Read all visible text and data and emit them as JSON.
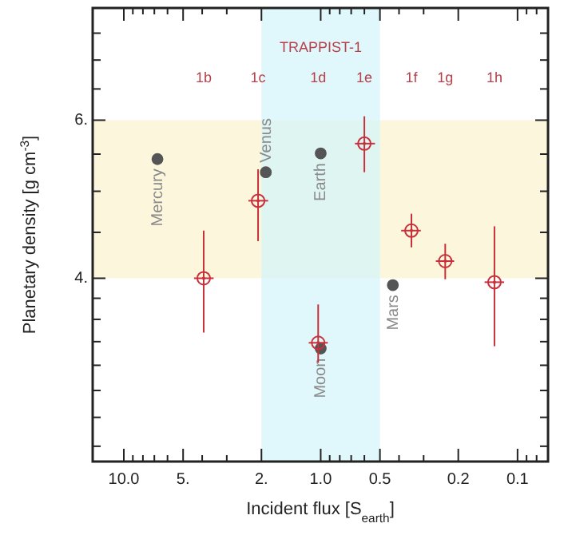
{
  "chart_data": {
    "type": "scatter",
    "xlabel": "Incident flux [S$_{earth}$]",
    "ylabel": "Planetary density [g cm$^{-3}$]",
    "log": "xy",
    "xlim": [
      14.4,
      0.07
    ],
    "ylim": [
      2.5,
      8
    ],
    "xticks": [
      {
        "value": 10,
        "label": "10.0"
      },
      {
        "value": 9,
        "label": null
      },
      {
        "value": 8,
        "label": null
      },
      {
        "value": 7,
        "label": null
      },
      {
        "value": 6,
        "label": null
      },
      {
        "value": 5,
        "label": "5."
      },
      {
        "value": 4,
        "label": null
      },
      {
        "value": 3,
        "label": null
      },
      {
        "value": 2,
        "label": "2."
      },
      {
        "value": 1,
        "label": "1.0"
      },
      {
        "value": 0.9,
        "label": null
      },
      {
        "value": 0.8,
        "label": null
      },
      {
        "value": 0.7,
        "label": null
      },
      {
        "value": 0.6,
        "label": null
      },
      {
        "value": 0.5,
        "label": "0.5"
      },
      {
        "value": 0.4,
        "label": null
      },
      {
        "value": 0.3,
        "label": null
      },
      {
        "value": 0.2,
        "label": "0.2"
      },
      {
        "value": 0.1,
        "label": "0.1"
      },
      {
        "value": 0.09,
        "label": null
      },
      {
        "value": 0.08,
        "label": null
      }
    ],
    "yticks": [
      {
        "value": 7.5,
        "label": null
      },
      {
        "value": 7,
        "label": null
      },
      {
        "value": 6.5,
        "label": null
      },
      {
        "value": 6,
        "label": "6."
      },
      {
        "value": 5.5,
        "label": null
      },
      {
        "value": 5,
        "label": null
      },
      {
        "value": 4.5,
        "label": null
      },
      {
        "value": 4,
        "label": "4."
      },
      {
        "value": 3.8,
        "label": null
      },
      {
        "value": 3.6,
        "label": null
      },
      {
        "value": 3.4,
        "label": null
      },
      {
        "value": 3.2,
        "label": null
      },
      {
        "value": 3,
        "label": null
      },
      {
        "value": 2.8,
        "label": null
      },
      {
        "value": 2.6,
        "label": null
      }
    ],
    "bands": [
      {
        "axis": "y",
        "from": 4,
        "to": 6,
        "color": "#fbf6d6"
      },
      {
        "axis": "x",
        "from": 2,
        "to": 0.5,
        "color": "#d6f4fa"
      }
    ],
    "series": [
      {
        "color": "#555555",
        "marker": "circle",
        "x": [
          6.75,
          1.9,
          1.0,
          1.0,
          0.43
        ],
        "values": [
          5.43,
          5.25,
          5.51,
          3.34,
          3.93
        ],
        "value_labels": [
          "Mercury",
          "Venus",
          "Earth",
          "Moon",
          "Mars"
        ]
      },
      {
        "color": "#c8303c",
        "marker": "circle",
        "x": [
          3.93,
          2.08,
          1.03,
          0.6,
          0.346,
          0.233,
          0.131
        ],
        "values": [
          4.0,
          4.88,
          3.39,
          5.65,
          4.52,
          4.18,
          3.96
        ],
        "errors": [
          [
            3.48,
            4.52
          ],
          [
            4.4,
            5.29
          ],
          [
            3.22,
            3.74
          ],
          [
            5.25,
            6.06
          ],
          [
            4.33,
            4.72
          ],
          [
            3.99,
            4.37
          ],
          [
            3.36,
            4.57
          ]
        ],
        "xerrors": [
          [
            3.5,
            4.4
          ],
          [
            1.85,
            2.33
          ],
          [
            0.92,
            1.15
          ],
          [
            0.53,
            0.67
          ],
          [
            0.31,
            0.39
          ],
          [
            0.21,
            0.26
          ],
          [
            0.117,
            0.147
          ]
        ]
      }
    ],
    "annotations": [
      "TRAPPIST-1",
      "1b",
      "1c",
      "1d",
      "1e",
      "1f",
      "1g",
      "1h"
    ]
  }
}
